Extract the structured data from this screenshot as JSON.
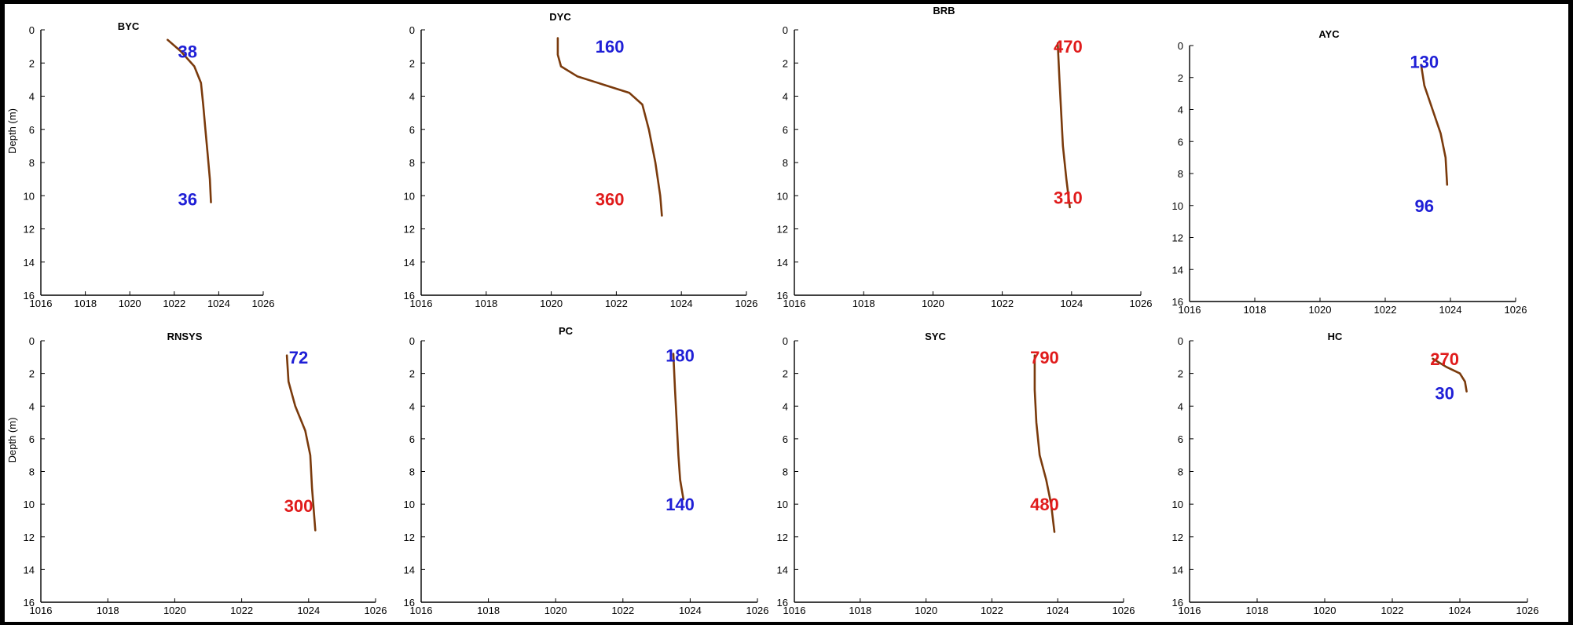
{
  "figure": {
    "colors": {
      "profile_line": "#7a3a0c",
      "label_blue": "#1f1fd6",
      "label_red": "#e01b1b",
      "axis": "#000000"
    }
  },
  "chart_data": [
    {
      "type": "line",
      "title": "BYC",
      "ylabel": "Depth (m)",
      "xlim": [
        1016,
        1026
      ],
      "ylim": [
        16,
        0
      ],
      "y_reversed": true,
      "xticks": [
        "1016",
        "1018",
        "1020",
        "1022",
        "1024",
        "1026"
      ],
      "yticks": [
        "0",
        "2",
        "4",
        "6",
        "8",
        "10",
        "12",
        "14",
        "16"
      ],
      "series": [
        {
          "x": [
            1021.7,
            1022.3,
            1022.9,
            1023.2,
            1023.3,
            1023.4,
            1023.5,
            1023.6,
            1023.65
          ],
          "y": [
            0.6,
            1.3,
            2.2,
            3.2,
            4.5,
            6.0,
            7.5,
            9.0,
            10.4
          ]
        }
      ],
      "annotations": [
        {
          "text": "38",
          "x": 1022.6,
          "y": 1.3,
          "color": "blue"
        },
        {
          "text": "36",
          "x": 1022.6,
          "y": 10.2,
          "color": "blue"
        }
      ]
    },
    {
      "type": "line",
      "title": "DYC",
      "ylabel": "",
      "xlim": [
        1016,
        1026
      ],
      "ylim": [
        16,
        0
      ],
      "y_reversed": true,
      "xticks": [
        "1016",
        "1018",
        "1020",
        "1022",
        "1024",
        "1026"
      ],
      "yticks": [
        "0",
        "2",
        "4",
        "6",
        "8",
        "10",
        "12",
        "14",
        "16"
      ],
      "series": [
        {
          "x": [
            1020.2,
            1020.2,
            1020.3,
            1020.8,
            1021.6,
            1022.4,
            1022.8,
            1023.0,
            1023.2,
            1023.35,
            1023.4
          ],
          "y": [
            0.5,
            1.5,
            2.2,
            2.8,
            3.3,
            3.8,
            4.5,
            6.0,
            8.0,
            10.0,
            11.2
          ]
        }
      ],
      "annotations": [
        {
          "text": "160",
          "x": 1021.8,
          "y": 1.0,
          "color": "blue"
        },
        {
          "text": "360",
          "x": 1021.8,
          "y": 10.2,
          "color": "red"
        }
      ]
    },
    {
      "type": "line",
      "title": "BRB",
      "ylabel": "",
      "xlim": [
        1016,
        1026
      ],
      "ylim": [
        16,
        0
      ],
      "y_reversed": true,
      "xticks": [
        "1016",
        "1018",
        "1020",
        "1022",
        "1024",
        "1026"
      ],
      "yticks": [
        "0",
        "2",
        "4",
        "6",
        "8",
        "10",
        "12",
        "14",
        "16"
      ],
      "series": [
        {
          "x": [
            1023.6,
            1023.65,
            1023.7,
            1023.75,
            1023.85,
            1023.95
          ],
          "y": [
            0.8,
            3.0,
            5.0,
            7.0,
            9.0,
            10.7
          ]
        }
      ],
      "annotations": [
        {
          "text": "470",
          "x": 1023.9,
          "y": 1.0,
          "color": "red"
        },
        {
          "text": "310",
          "x": 1023.9,
          "y": 10.1,
          "color": "red"
        }
      ]
    },
    {
      "type": "line",
      "title": "AYC",
      "ylabel": "",
      "xlim": [
        1016,
        1026
      ],
      "ylim": [
        16,
        0
      ],
      "y_reversed": true,
      "xticks": [
        "1016",
        "1018",
        "1020",
        "1022",
        "1024",
        "1026"
      ],
      "yticks": [
        "0",
        "2",
        "4",
        "6",
        "8",
        "10",
        "12",
        "14",
        "16"
      ],
      "series": [
        {
          "x": [
            1023.1,
            1023.2,
            1023.45,
            1023.7,
            1023.85,
            1023.9
          ],
          "y": [
            1.2,
            2.5,
            4.0,
            5.5,
            7.0,
            8.7
          ]
        }
      ],
      "annotations": [
        {
          "text": "130",
          "x": 1023.2,
          "y": 1.0,
          "color": "blue"
        },
        {
          "text": "96",
          "x": 1023.2,
          "y": 10.0,
          "color": "blue"
        }
      ]
    },
    {
      "type": "line",
      "title": "RNSYS",
      "ylabel": "Depth (m)",
      "xlim": [
        1016,
        1026
      ],
      "ylim": [
        16,
        0
      ],
      "y_reversed": true,
      "xticks": [
        "1016",
        "1018",
        "1020",
        "1022",
        "1024",
        "1026"
      ],
      "yticks": [
        "0",
        "2",
        "4",
        "6",
        "8",
        "10",
        "12",
        "14",
        "16"
      ],
      "series": [
        {
          "x": [
            1023.35,
            1023.4,
            1023.6,
            1023.9,
            1024.05,
            1024.1,
            1024.2
          ],
          "y": [
            0.9,
            2.5,
            4.0,
            5.5,
            7.0,
            9.0,
            11.6
          ]
        }
      ],
      "annotations": [
        {
          "text": "72",
          "x": 1023.7,
          "y": 1.0,
          "color": "blue"
        },
        {
          "text": "300",
          "x": 1023.7,
          "y": 10.1,
          "color": "red"
        }
      ]
    },
    {
      "type": "line",
      "title": "PC",
      "ylabel": "",
      "xlim": [
        1016,
        1026
      ],
      "ylim": [
        16,
        0
      ],
      "y_reversed": true,
      "xticks": [
        "1016",
        "1018",
        "1020",
        "1022",
        "1024",
        "1026"
      ],
      "yticks": [
        "0",
        "2",
        "4",
        "6",
        "8",
        "10",
        "12",
        "14",
        "16"
      ],
      "series": [
        {
          "x": [
            1023.5,
            1023.55,
            1023.6,
            1023.65,
            1023.7,
            1023.8
          ],
          "y": [
            0.8,
            3.0,
            5.0,
            7.0,
            8.5,
            9.7
          ]
        }
      ],
      "annotations": [
        {
          "text": "180",
          "x": 1023.7,
          "y": 0.9,
          "color": "blue"
        },
        {
          "text": "140",
          "x": 1023.7,
          "y": 10.0,
          "color": "blue"
        }
      ]
    },
    {
      "type": "line",
      "title": "SYC",
      "ylabel": "",
      "xlim": [
        1016,
        1026
      ],
      "ylim": [
        16,
        0
      ],
      "y_reversed": true,
      "xticks": [
        "1016",
        "1018",
        "1020",
        "1022",
        "1024",
        "1026"
      ],
      "yticks": [
        "0",
        "2",
        "4",
        "6",
        "8",
        "10",
        "12",
        "14",
        "16"
      ],
      "series": [
        {
          "x": [
            1023.3,
            1023.3,
            1023.35,
            1023.45,
            1023.65,
            1023.8,
            1023.9
          ],
          "y": [
            0.9,
            3.0,
            5.0,
            7.0,
            8.5,
            10.0,
            11.7
          ]
        }
      ],
      "annotations": [
        {
          "text": "790",
          "x": 1023.6,
          "y": 1.0,
          "color": "red"
        },
        {
          "text": "480",
          "x": 1023.6,
          "y": 10.0,
          "color": "red"
        }
      ]
    },
    {
      "type": "line",
      "title": "HC",
      "ylabel": "",
      "xlim": [
        1016,
        1026
      ],
      "ylim": [
        16,
        0
      ],
      "y_reversed": true,
      "xticks": [
        "1016",
        "1018",
        "1020",
        "1022",
        "1024",
        "1026"
      ],
      "yticks": [
        "0",
        "2",
        "4",
        "6",
        "8",
        "10",
        "12",
        "14",
        "16"
      ],
      "series": [
        {
          "x": [
            1023.2,
            1023.6,
            1024.0,
            1024.15,
            1024.2
          ],
          "y": [
            1.1,
            1.6,
            2.0,
            2.5,
            3.1
          ]
        }
      ],
      "annotations": [
        {
          "text": "270",
          "x": 1023.55,
          "y": 1.1,
          "color": "red"
        },
        {
          "text": "30",
          "x": 1023.55,
          "y": 3.2,
          "color": "blue"
        }
      ]
    }
  ]
}
